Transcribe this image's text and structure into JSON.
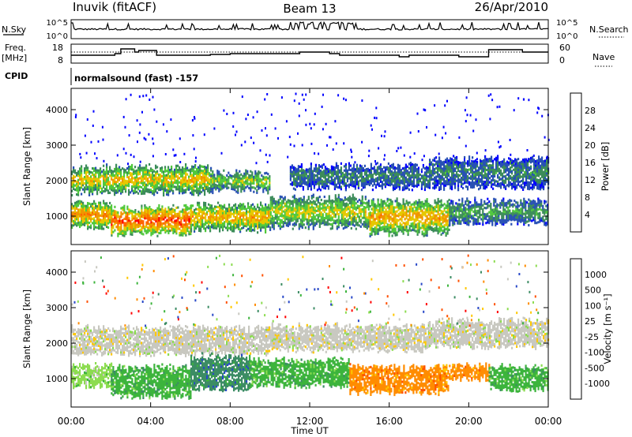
{
  "header": {
    "station": "Inuvik (fitACF)",
    "beam": "Beam 13",
    "date": "26/Apr/2010"
  },
  "top_panels": {
    "nsky_label": "N.Sky",
    "nsky_ticks": [
      "10^5",
      "10^0"
    ],
    "nsearch_label": "N.Search",
    "nsearch_ticks": [
      "10^5",
      "10^0"
    ],
    "freq_label_1": "Freq.",
    "freq_label_2": "[MHz]",
    "freq_ticks": [
      "18",
      "8"
    ],
    "nave_label": "Nave",
    "nave_ticks": [
      "60",
      "0"
    ],
    "cpid_label": "CPID",
    "cpid_text": "normalsound (fast) -157"
  },
  "colors": {
    "power_scale": [
      "#0000ff",
      "#2850b4",
      "#3c8c5a",
      "#50c83c",
      "#e6c800",
      "#f09600",
      "#ff6400",
      "#ff0000"
    ],
    "velocity_scale": [
      "#2848c8",
      "#3c8c64",
      "#3cb43c",
      "#8cdc50",
      "#c8c8c0",
      "#ffc800",
      "#ff8c00",
      "#ff5000",
      "#ff0000"
    ],
    "ground_scatter": "#bebebe"
  },
  "chart_data": [
    {
      "type": "heatmap",
      "name": "power",
      "ylabel": "Slant Range [km]",
      "yticks": [
        "4000",
        "3000",
        "2000",
        "1000"
      ],
      "ylim": [
        200,
        4600
      ],
      "colorbar_label": "Power [dB]",
      "colorbar_ticks": [
        "28",
        "24",
        "20",
        "16",
        "12",
        "8",
        "4"
      ],
      "colorbar_range": [
        0,
        32
      ],
      "bands": [
        {
          "x": [
            0,
            7
          ],
          "range_km": [
            1650,
            2350
          ],
          "level": 20
        },
        {
          "x": [
            7,
            10
          ],
          "range_km": [
            1700,
            2200
          ],
          "level": 16
        },
        {
          "x": [
            11,
            18
          ],
          "range_km": [
            1800,
            2400
          ],
          "level": 10
        },
        {
          "x": [
            18,
            24
          ],
          "range_km": [
            1800,
            2600
          ],
          "level": 10
        },
        {
          "x": [
            0,
            2
          ],
          "range_km": [
            700,
            1350
          ],
          "level": 24
        },
        {
          "x": [
            2,
            6
          ],
          "range_km": [
            500,
            1200
          ],
          "level": 28
        },
        {
          "x": [
            6,
            10
          ],
          "range_km": [
            600,
            1300
          ],
          "level": 22
        },
        {
          "x": [
            10,
            15
          ],
          "range_km": [
            700,
            1500
          ],
          "level": 18
        },
        {
          "x": [
            15,
            19
          ],
          "range_km": [
            500,
            1400
          ],
          "level": 22
        },
        {
          "x": [
            19,
            24
          ],
          "range_km": [
            800,
            1400
          ],
          "level": 12
        }
      ]
    },
    {
      "type": "heatmap",
      "name": "velocity",
      "ylabel": "Slant Range [km]",
      "yticks": [
        "4000",
        "3000",
        "2000",
        "1000"
      ],
      "ylim": [
        200,
        4600
      ],
      "colorbar_label": "Velocity [m s⁻¹]",
      "colorbar_ticks": [
        "1000",
        "500",
        "100",
        "25",
        "-25",
        "-100",
        "-500",
        "-1000"
      ],
      "bands": [
        {
          "x": [
            0,
            10
          ],
          "range_km": [
            1700,
            2400
          ],
          "class": "ground"
        },
        {
          "x": [
            10,
            18
          ],
          "range_km": [
            1800,
            2450
          ],
          "class": "ground"
        },
        {
          "x": [
            18,
            24
          ],
          "range_km": [
            1900,
            2600
          ],
          "class": "ground"
        },
        {
          "x": [
            0,
            2
          ],
          "range_km": [
            800,
            1350
          ],
          "class": "green-light"
        },
        {
          "x": [
            2,
            6
          ],
          "range_km": [
            500,
            1300
          ],
          "class": "green"
        },
        {
          "x": [
            6,
            9
          ],
          "range_km": [
            700,
            1600
          ],
          "class": "green-dark"
        },
        {
          "x": [
            9,
            14
          ],
          "range_km": [
            800,
            1500
          ],
          "class": "green"
        },
        {
          "x": [
            14,
            19
          ],
          "range_km": [
            600,
            1300
          ],
          "class": "orange"
        },
        {
          "x": [
            19,
            21
          ],
          "range_km": [
            1000,
            1350
          ],
          "class": "orange"
        },
        {
          "x": [
            21,
            24
          ],
          "range_km": [
            700,
            1300
          ],
          "class": "green"
        }
      ]
    }
  ],
  "xaxis": {
    "ticks": [
      "00:00",
      "04:00",
      "08:00",
      "12:00",
      "16:00",
      "20:00",
      "00:00"
    ],
    "label": "Time UT"
  }
}
